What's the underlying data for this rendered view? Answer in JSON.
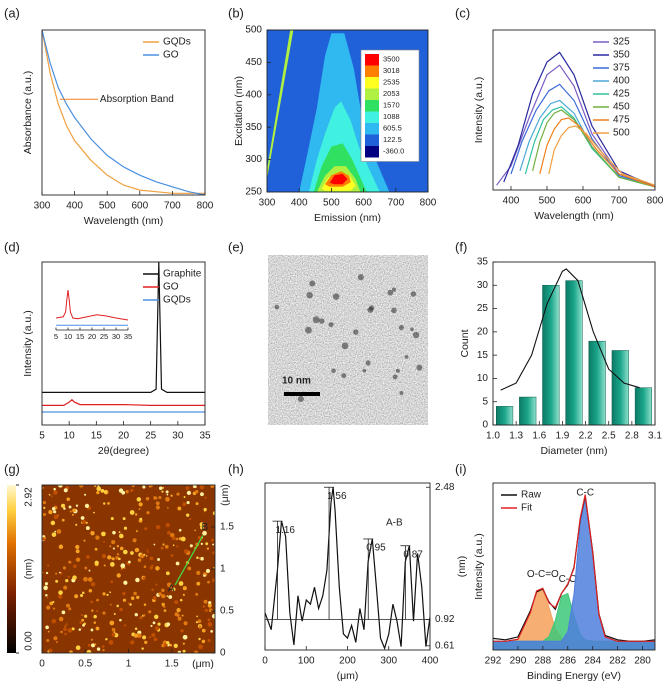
{
  "chart_data": [
    {
      "type": "line",
      "panel_label": "(a)",
      "xlabel": "Wavelength (nm)",
      "ylabel": "Absorbance (a.u.)",
      "xlim": [
        300,
        800
      ],
      "xticks": [
        300,
        400,
        500,
        600,
        700,
        800
      ],
      "ylim": [
        0,
        1
      ],
      "legend": "upper right",
      "x": [
        300,
        325,
        350,
        375,
        400,
        450,
        500,
        550,
        600,
        650,
        700,
        750,
        800
      ],
      "series": [
        {
          "name": "GQDs",
          "color": "#f0a040",
          "values": [
            1.0,
            0.74,
            0.55,
            0.42,
            0.33,
            0.21,
            0.12,
            0.06,
            0.03,
            0.02,
            0.01,
            0.01,
            0.01
          ]
        },
        {
          "name": "GO",
          "color": "#4a90e0",
          "values": [
            1.0,
            0.8,
            0.65,
            0.55,
            0.47,
            0.34,
            0.24,
            0.17,
            0.12,
            0.08,
            0.05,
            0.02,
            0.0
          ]
        }
      ],
      "annotations": [
        {
          "text": "Absorption Band",
          "x": 355,
          "y": 0.58
        }
      ]
    },
    {
      "type": "contour",
      "panel_label": "(b)",
      "xlabel": "Emission (nm)",
      "ylabel": "Excitation (nm)",
      "xlim": [
        300,
        800
      ],
      "xticks": [
        300,
        400,
        500,
        600,
        700,
        800
      ],
      "ylim": [
        250,
        500
      ],
      "yticks": [
        250,
        300,
        350,
        400,
        450,
        500
      ],
      "background_level": 122.5,
      "colorbar": [
        {
          "value": 3500,
          "color": "#ff0000"
        },
        {
          "value": 3018,
          "color": "#ff8000"
        },
        {
          "value": 2535,
          "color": "#ffff20"
        },
        {
          "value": 2053,
          "color": "#b0f040"
        },
        {
          "value": 1570,
          "color": "#30e060"
        },
        {
          "value": 1088,
          "color": "#40f0e0"
        },
        {
          "value": 605.5,
          "color": "#30b8f0"
        },
        {
          "value": 122.5,
          "color": "#2060d8"
        },
        {
          "value": -360,
          "label": "-360.0",
          "color": "#000080"
        }
      ],
      "contours": [
        {
          "level": 605.5,
          "x": [
            400,
            430,
            455,
            480,
            500,
            540,
            570,
            590,
            620,
            680
          ],
          "y": [
            250,
            320,
            380,
            460,
            495,
            495,
            440,
            380,
            320,
            250
          ]
        },
        {
          "level": 1088,
          "x": [
            430,
            455,
            480,
            510,
            530,
            560,
            585,
            650
          ],
          "y": [
            250,
            300,
            340,
            380,
            390,
            360,
            320,
            250
          ]
        },
        {
          "level": 1570,
          "x": [
            445,
            470,
            500,
            535,
            565,
            610
          ],
          "y": [
            250,
            290,
            320,
            325,
            300,
            250
          ]
        },
        {
          "level": 2053,
          "x": [
            455,
            480,
            510,
            545,
            575,
            590
          ],
          "y": [
            250,
            275,
            290,
            290,
            270,
            250
          ]
        },
        {
          "level": 2535,
          "x": [
            470,
            490,
            520,
            555,
            575,
            560,
            480
          ],
          "y": [
            255,
            272,
            280,
            276,
            260,
            252,
            252
          ]
        },
        {
          "level": 3018,
          "x": [
            480,
            500,
            530,
            555,
            560,
            535,
            495
          ],
          "y": [
            262,
            276,
            282,
            275,
            265,
            258,
            258
          ]
        },
        {
          "level": 3500,
          "x": [
            495,
            510,
            535,
            550,
            535,
            510
          ],
          "y": [
            264,
            276,
            278,
            270,
            262,
            262
          ]
        },
        {
          "level": 2053,
          "x": [
            300,
            372,
            382,
            300
          ],
          "y": [
            285,
            500,
            500,
            270
          ]
        }
      ]
    },
    {
      "type": "line",
      "panel_label": "(c)",
      "xlabel": "Wavelength (nm)",
      "ylabel": "Intensity (a.u.)",
      "xlim": [
        350,
        800
      ],
      "xticks": [
        400,
        500,
        600,
        700,
        800
      ],
      "ylim": [
        0,
        1
      ],
      "legend": "upper right",
      "series": [
        {
          "name": "325",
          "color": "#7b5cc4",
          "x": [
            360,
            400,
            450,
            500,
            535,
            575,
            625,
            700,
            800
          ],
          "values": [
            0.03,
            0.15,
            0.45,
            0.72,
            0.78,
            0.65,
            0.35,
            0.1,
            0.02
          ]
        },
        {
          "name": "350",
          "color": "#2a2aa0",
          "x": [
            380,
            420,
            460,
            500,
            535,
            575,
            625,
            700,
            800
          ],
          "values": [
            0.05,
            0.28,
            0.6,
            0.8,
            0.86,
            0.72,
            0.4,
            0.12,
            0.02
          ]
        },
        {
          "name": "375",
          "color": "#3a6ad8",
          "x": [
            400,
            430,
            470,
            505,
            535,
            575,
            625,
            700,
            800
          ],
          "values": [
            0.1,
            0.3,
            0.5,
            0.62,
            0.66,
            0.56,
            0.32,
            0.09,
            0.02
          ]
        },
        {
          "name": "400",
          "color": "#4aa8d8",
          "x": [
            425,
            450,
            480,
            510,
            535,
            575,
            625,
            700,
            800
          ],
          "values": [
            0.12,
            0.3,
            0.45,
            0.54,
            0.56,
            0.48,
            0.27,
            0.08,
            0.02
          ]
        },
        {
          "name": "425",
          "color": "#30c0a0",
          "x": [
            440,
            465,
            490,
            515,
            540,
            575,
            625,
            700,
            800
          ],
          "values": [
            0.1,
            0.3,
            0.44,
            0.5,
            0.52,
            0.45,
            0.26,
            0.08,
            0.02
          ]
        },
        {
          "name": "450",
          "color": "#70b040",
          "x": [
            460,
            480,
            500,
            520,
            540,
            575,
            625,
            700,
            800
          ],
          "values": [
            0.12,
            0.3,
            0.42,
            0.48,
            0.5,
            0.44,
            0.27,
            0.08,
            0.02
          ]
        },
        {
          "name": "475",
          "color": "#f08020",
          "x": [
            480,
            500,
            520,
            540,
            560,
            590,
            635,
            700,
            800
          ],
          "values": [
            0.1,
            0.28,
            0.38,
            0.44,
            0.45,
            0.4,
            0.26,
            0.1,
            0.02
          ]
        },
        {
          "name": "500",
          "color": "#f0a040",
          "x": [
            505,
            520,
            540,
            560,
            580,
            610,
            650,
            710,
            800
          ],
          "values": [
            0.1,
            0.25,
            0.34,
            0.39,
            0.4,
            0.35,
            0.24,
            0.1,
            0.03
          ]
        }
      ]
    },
    {
      "type": "line",
      "panel_label": "(d)",
      "xlabel": "2θ(degree)",
      "ylabel": "Intensity (a.u.)",
      "xlim": [
        5,
        35
      ],
      "xticks": [
        5,
        10,
        15,
        20,
        25,
        30,
        35
      ],
      "ylim": [
        0,
        1
      ],
      "legend": "upper right",
      "series": [
        {
          "name": "Graphite",
          "color": "#111111",
          "x": [
            5,
            25,
            26,
            26.5,
            27,
            28,
            35
          ],
          "values": [
            0.2,
            0.2,
            0.22,
            1.0,
            0.22,
            0.2,
            0.2
          ]
        },
        {
          "name": "GO",
          "color": "#e02020",
          "x": [
            5,
            9,
            10,
            10.5,
            11,
            12,
            20,
            25,
            35
          ],
          "values": [
            0.12,
            0.12,
            0.14,
            0.155,
            0.14,
            0.125,
            0.125,
            0.12,
            0.12
          ]
        },
        {
          "name": "GQDs",
          "color": "#4a90e0",
          "x": [
            5,
            35
          ],
          "values": [
            0.08,
            0.08
          ]
        }
      ]
    },
    {
      "type": "line",
      "xlim": [
        5,
        35
      ],
      "xticks": [
        5,
        10,
        15,
        20,
        25,
        30,
        35
      ],
      "ylim": [
        0,
        1
      ],
      "series": [
        {
          "color": "#e02020",
          "x": [
            5,
            8,
            9,
            9.5,
            10,
            10.5,
            11,
            12,
            14,
            18,
            22,
            26,
            30,
            35
          ],
          "values": [
            0.3,
            0.33,
            0.45,
            0.75,
            1.0,
            0.75,
            0.45,
            0.3,
            0.28,
            0.33,
            0.38,
            0.35,
            0.3,
            0.25
          ]
        },
        {
          "color": "#4a90e0",
          "x": [
            5,
            35
          ],
          "values": [
            0.12,
            0.12
          ]
        }
      ]
    },
    {
      "type": "tem",
      "panel_label": "(e)",
      "scale_bar": "10 nm"
    },
    {
      "type": "histogram",
      "panel_label": "(f)",
      "xlabel": "Diameter (nm)",
      "ylabel": "Count",
      "bins": [
        1.0,
        1.3,
        1.6,
        1.9,
        2.2,
        2.5,
        2.8,
        3.1
      ],
      "values": [
        4,
        6,
        30,
        31,
        18,
        16,
        8
      ],
      "color": "#1aa58a",
      "xlim": [
        1.0,
        3.1
      ],
      "xticks": [
        {
          "value": 1.0,
          "label": "1.0"
        },
        1.3,
        1.6,
        1.9,
        2.2,
        2.5,
        2.8,
        3.1
      ],
      "ylim": [
        0,
        35
      ],
      "yticks": [
        0,
        5,
        10,
        15,
        20,
        25,
        30,
        35
      ],
      "fit": {
        "x": [
          1.1,
          1.3,
          1.5,
          1.7,
          1.9,
          1.95,
          2.1,
          2.3,
          2.5,
          2.7,
          2.9
        ],
        "values": [
          7.5,
          9,
          15,
          26,
          33,
          33.5,
          31,
          20,
          12,
          9,
          8
        ]
      }
    },
    {
      "type": "afm",
      "panel_label": "(g)",
      "xlabel": "(μm)",
      "ylabel": "(μm)",
      "y_side": "right",
      "xlim": [
        0,
        2
      ],
      "xticks": [
        0,
        0.5,
        1,
        1.5
      ],
      "ylim": [
        0,
        2
      ],
      "yticks": [
        0,
        0.5,
        1,
        1.5
      ],
      "zlim": [
        0,
        2.92
      ],
      "colorbar_ticks": [
        {
          "value": 0,
          "label": "0.00"
        },
        2.92
      ],
      "colorbar_label": "(nm)",
      "markers": [
        {
          "label": "A",
          "x": 1.54,
          "y": 0.81
        },
        {
          "label": "B",
          "x": 1.86,
          "y": 1.4
        }
      ]
    },
    {
      "type": "line",
      "panel_label": "(h)",
      "xlabel": "(μm)",
      "ylabel": "(nm)",
      "y_side": "right",
      "note": "A-B",
      "xlim": [
        0,
        400
      ],
      "xticks": [
        0,
        100,
        200,
        300,
        400
      ],
      "ylim": [
        0.56,
        2.53
      ],
      "yticks": [
        0.61,
        0.92,
        2.48
      ],
      "baseline": 0.92,
      "x": [
        0,
        15,
        30,
        40,
        50,
        60,
        70,
        80,
        90,
        100,
        110,
        120,
        130,
        140,
        150,
        160,
        165,
        170,
        180,
        190,
        200,
        210,
        220,
        230,
        240,
        250,
        260,
        270,
        280,
        290,
        300,
        310,
        320,
        330,
        340,
        350,
        360,
        370,
        380,
        390,
        400
      ],
      "series": [
        {
          "color": "#111111",
          "values": [
            1.0,
            0.8,
            1.5,
            2.08,
            1.9,
            1.0,
            0.62,
            1.2,
            0.9,
            1.15,
            1.1,
            1.3,
            1.05,
            1.2,
            1.5,
            2.3,
            2.48,
            2.2,
            1.3,
            0.75,
            0.7,
            0.85,
            0.65,
            1.05,
            0.8,
            1.6,
            1.87,
            1.3,
            0.7,
            0.58,
            0.75,
            1.1,
            0.9,
            0.6,
            1.6,
            1.79,
            0.9,
            1.7,
            1.3,
            0.6,
            0.95
          ]
        }
      ],
      "annotations": [
        {
          "value": 1.16,
          "x": 40
        },
        {
          "value": 1.56,
          "x": 165
        },
        {
          "value": 0.95,
          "x": 260
        },
        {
          "value": 0.87,
          "x": 350
        }
      ]
    },
    {
      "type": "line",
      "panel_label": "(i)",
      "xlabel": "Binding Energy (eV)",
      "ylabel": "Intensity (a.u.)",
      "xlim": [
        292,
        279
      ],
      "xticks": [
        292,
        290,
        288,
        286,
        284,
        282,
        280
      ],
      "ylim": [
        0,
        1.15
      ],
      "legend": "upper left",
      "x": [
        292,
        291,
        290,
        289,
        288.5,
        288,
        287.5,
        287,
        286.5,
        286,
        285.5,
        285,
        284.6,
        284,
        283.5,
        283,
        282,
        281,
        280,
        279
      ],
      "series": [
        {
          "name": "O-C=O",
          "color": "#f5a05a",
          "filled": true,
          "values": [
            0.06,
            0.06,
            0.074,
            0.258,
            0.407,
            0.425,
            0.29,
            0.147,
            0.08,
            0.06,
            0.06,
            0.06,
            0.06,
            0.06,
            0.06,
            0.06,
            0.06,
            0.06,
            0.06,
            0.06
          ]
        },
        {
          "name": "C-O",
          "color": "#3cc878",
          "filled": true,
          "values": [
            0.06,
            0.06,
            0.06,
            0.06,
            0.06,
            0.06,
            0.093,
            0.204,
            0.37,
            0.39,
            0.237,
            0.107,
            0.07,
            0.06,
            0.06,
            0.06,
            0.06,
            0.06,
            0.06,
            0.06
          ]
        },
        {
          "name": "C-C",
          "color": "#4f7fdd",
          "filled": true,
          "values": [
            0.06,
            0.06,
            0.06,
            0.06,
            0.06,
            0.06,
            0.06,
            0.06,
            0.06,
            0.126,
            0.385,
            0.86,
            1.06,
            0.67,
            0.246,
            0.09,
            0.06,
            0.06,
            0.06,
            0.06
          ]
        },
        {
          "name": "Raw",
          "color": "#111111",
          "values": [
            0.08,
            0.07,
            0.09,
            0.27,
            0.4,
            0.42,
            0.33,
            0.28,
            0.39,
            0.45,
            0.57,
            0.9,
            1.06,
            0.68,
            0.25,
            0.1,
            0.07,
            0.06,
            0.06,
            0.07
          ]
        },
        {
          "name": "Fit",
          "color": "#e02020",
          "values": [
            0.06,
            0.06,
            0.074,
            0.258,
            0.407,
            0.425,
            0.323,
            0.291,
            0.39,
            0.456,
            0.562,
            0.907,
            1.07,
            0.67,
            0.246,
            0.09,
            0.06,
            0.06,
            0.06,
            0.06
          ]
        }
      ]
    }
  ]
}
